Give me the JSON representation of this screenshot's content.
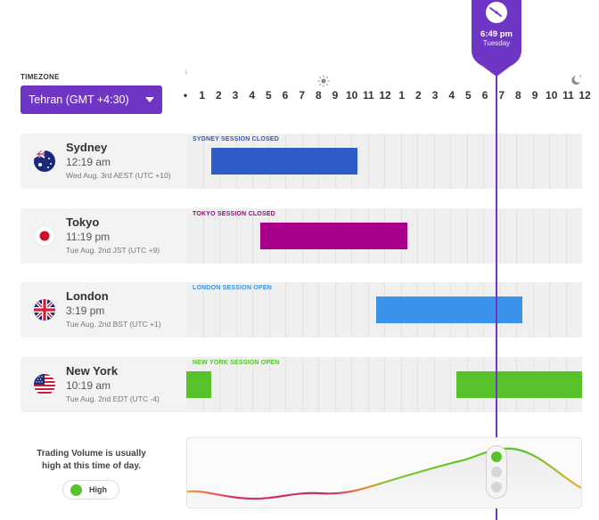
{
  "timezone": {
    "label": "TIMEZONE",
    "selected": "Tehran (GMT +4:30)"
  },
  "hour_marker_small": "1",
  "hours": [
    "•",
    "1",
    "2",
    "3",
    "4",
    "5",
    "6",
    "7",
    "8",
    "9",
    "10",
    "11",
    "12",
    "1",
    "2",
    "3",
    "4",
    "5",
    "6",
    "7",
    "8",
    "9",
    "10",
    "11",
    "12"
  ],
  "now": {
    "time": "6:49 pm",
    "day": "Tuesday",
    "position_hours": 18.8
  },
  "sessions": [
    {
      "city": "Sydney",
      "time": "12:19 am",
      "date": "Wed Aug. 3rd AEST (UTC +10)",
      "status": "SYDNEY SESSION CLOSED",
      "color": "#2d5bc8",
      "label_color": "#2d5bc8",
      "flag": "australia-flag-icon",
      "bars": [
        [
          1.5,
          10.4
        ]
      ]
    },
    {
      "city": "Tokyo",
      "time": "11:19 pm",
      "date": "Tue Aug. 2nd JST (UTC +9)",
      "status": "TOKYO SESSION CLOSED",
      "color": "#a8008a",
      "label_color": "#a8008a",
      "flag": "japan-flag-icon",
      "bars": [
        [
          4.5,
          13.4
        ]
      ]
    },
    {
      "city": "London",
      "time": "3:19 pm",
      "date": "Tue Aug. 2nd BST (UTC +1)",
      "status": "LONDON SESSION OPEN",
      "color": "#3a93ea",
      "label_color": "#3a93ea",
      "flag": "uk-flag-icon",
      "bars": [
        [
          11.5,
          20.4
        ]
      ]
    },
    {
      "city": "New York",
      "time": "10:19 am",
      "date": "Tue Aug. 2nd EDT (UTC -4)",
      "status": "NEW YORK SESSION OPEN",
      "color": "#57c22a",
      "label_color": "#57c22a",
      "flag": "us-flag-icon",
      "bars": [
        [
          0,
          1.5
        ],
        [
          16.4,
          24
        ]
      ]
    }
  ],
  "volume": {
    "text": "Trading Volume is usually high at this time of day.",
    "level": "High",
    "level_color": "#57c22a"
  },
  "icons": {
    "sun": "sun-icon",
    "moon": "moon-sleep-icon",
    "clock": "clock-icon",
    "dropdown": "chevron-down-icon"
  }
}
